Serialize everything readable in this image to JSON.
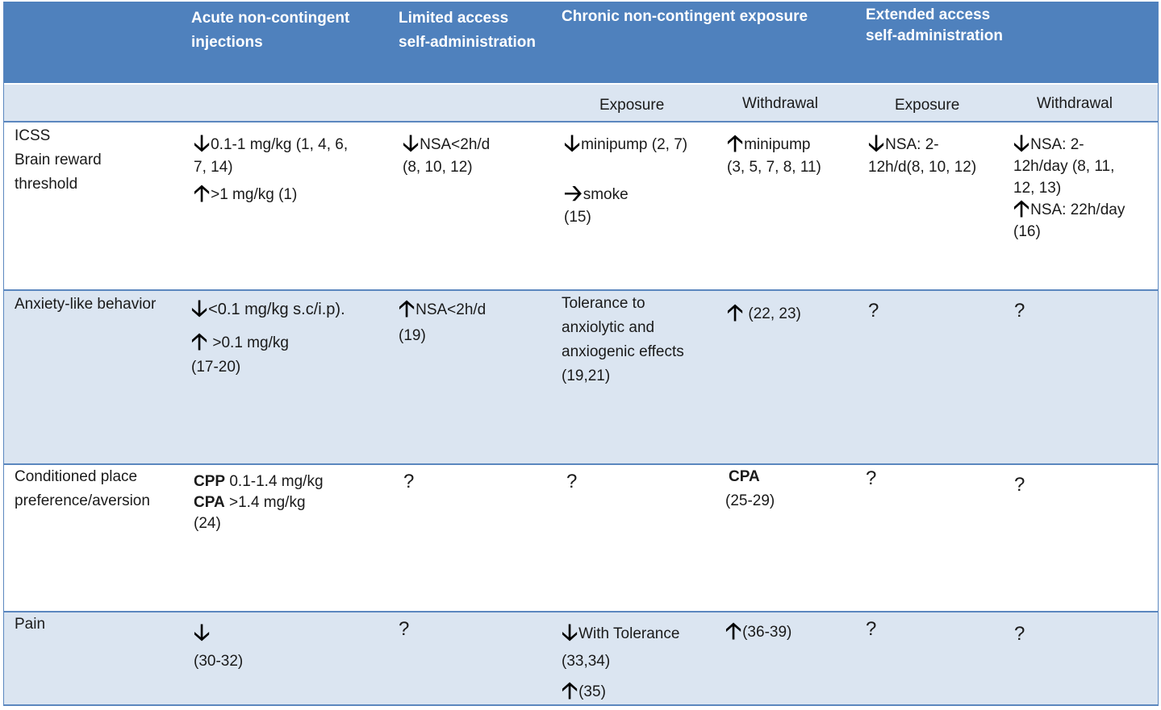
{
  "header": {
    "col1": [
      "Acute non-contingent",
      "injections"
    ],
    "col2": [
      "Limited access",
      "self-administration"
    ],
    "col3": "Chronic non-contingent exposure",
    "col4": [
      "Extended access",
      "self-administration"
    ]
  },
  "subheader": {
    "chronic_exposure": "Exposure",
    "chronic_withdrawal": "Withdrawal",
    "extended_exposure": "Exposure",
    "extended_withdrawal": "Withdrawal"
  },
  "rows": {
    "icss": {
      "label": [
        "ICSS",
        "Brain reward",
        "threshold"
      ],
      "acute": {
        "down": "0.1-1 mg/kg (1, 4, 6,",
        "down2": "7, 14)",
        "up": ">1 mg/kg (1)"
      },
      "limited": {
        "down": "NSA<2h/d",
        "down2": "(8, 10, 12)"
      },
      "chronic_exposure": {
        "down": "minipump (2, 7)",
        "right": "smoke",
        "right2": "(15)"
      },
      "chronic_withdrawal": {
        "up": "minipump",
        "up2": "(3, 5, 7, 8, 11)"
      },
      "extended_exposure": {
        "down": "NSA: 2-",
        "down2": "12h/d(8, 10, 12)"
      },
      "extended_withdrawal": {
        "down": "NSA: 2-",
        "down2": "12h/day (8, 11,",
        "down3": "12, 13)",
        "up": "NSA: 22h/day",
        "up2": "(16)"
      }
    },
    "anxiety": {
      "label": "Anxiety-like behavior",
      "acute": {
        "down": "<0.1 mg/kg s.c/i.p).",
        "up": ">0.1 mg/kg",
        "up2": "(17-20)"
      },
      "limited": {
        "up": "NSA<2h/d",
        "up2": "(19)"
      },
      "chronic_exposure": [
        "Tolerance to",
        "anxiolytic and",
        "anxiogenic effects",
        "(19,21)"
      ],
      "chronic_withdrawal": {
        "up": "(22, 23)"
      },
      "extended_exposure": "?",
      "extended_withdrawal": "?"
    },
    "cpp": {
      "label": [
        "Conditioned place",
        "preference/aversion"
      ],
      "acute": {
        "cpp_bold": "CPP",
        "cpp_text": " 0.1-1.4 mg/kg",
        "cpa_bold": "CPA",
        "cpa_text": " >1.4 mg/kg",
        "ref": "(24)"
      },
      "limited": "?",
      "chronic_exposure": "?",
      "chronic_withdrawal": {
        "bold": "CPA",
        "ref": "(25-29)"
      },
      "extended_exposure": "?",
      "extended_withdrawal": "?"
    },
    "pain": {
      "label": "Pain",
      "acute": {
        "ref": "(30-32)"
      },
      "limited": "?",
      "chronic_exposure": {
        "down": "With Tolerance",
        "down2": "(33,34)",
        "up": "(35)"
      },
      "chronic_withdrawal": {
        "up": "(36-39)"
      },
      "extended_exposure": "?",
      "extended_withdrawal": "?"
    }
  },
  "icons": {
    "down": "down-arrow-icon",
    "up": "up-arrow-icon",
    "right": "right-arrow-icon"
  },
  "colors": {
    "header_bg": "#4f81bd",
    "band_bg": "#dbe5f1",
    "border": "#5b87bf"
  }
}
